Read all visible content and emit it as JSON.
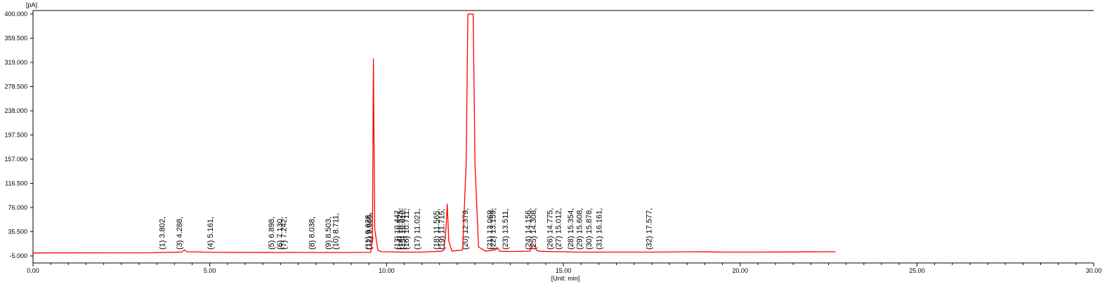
{
  "chart_data": {
    "type": "line",
    "yunit": "[pA]",
    "xlabel": "[Unit: min]",
    "xlim": [
      0,
      30
    ],
    "ylim": [
      -5,
      400
    ],
    "x_ticks": [
      "0.00",
      "5.00",
      "10.00",
      "15.00",
      "20.00",
      "25.00",
      "30.00"
    ],
    "y_ticks": [
      "-5.000",
      "35.500",
      "76.000",
      "116.500",
      "157.000",
      "197.500",
      "238.000",
      "278.500",
      "319.000",
      "359.500",
      "400.000"
    ],
    "grid": false,
    "series": [
      {
        "color": "#ff0000",
        "points": [
          [
            0,
            0
          ],
          [
            3.3,
            0.3
          ],
          [
            3.8,
            1
          ],
          [
            4.2,
            1.5
          ],
          [
            4.288,
            5
          ],
          [
            4.35,
            2
          ],
          [
            5.161,
            1
          ],
          [
            6.898,
            0.8
          ],
          [
            7.13,
            0.8
          ],
          [
            7.242,
            1
          ],
          [
            8.038,
            0.8
          ],
          [
            8.503,
            0.8
          ],
          [
            8.711,
            0.8
          ],
          [
            9.55,
            1
          ],
          [
            9.6,
            20
          ],
          [
            9.628,
            325
          ],
          [
            9.65,
            150
          ],
          [
            9.665,
            40
          ],
          [
            9.75,
            5
          ],
          [
            9.85,
            2
          ],
          [
            10.447,
            1.5
          ],
          [
            11.021,
            1.5
          ],
          [
            11.565,
            3
          ],
          [
            11.62,
            5
          ],
          [
            11.68,
            40
          ],
          [
            11.715,
            82
          ],
          [
            11.76,
            20
          ],
          [
            11.85,
            3
          ],
          [
            12.15,
            5
          ],
          [
            12.25,
            150
          ],
          [
            12.3,
            400
          ],
          [
            12.45,
            400
          ],
          [
            12.5,
            150
          ],
          [
            12.6,
            10
          ],
          [
            12.8,
            3
          ],
          [
            13.069,
            5
          ],
          [
            13.15,
            8
          ],
          [
            13.2,
            3
          ],
          [
            13.511,
            2.5
          ],
          [
            14.05,
            3
          ],
          [
            14.156,
            14
          ],
          [
            14.25,
            4
          ],
          [
            14.308,
            3
          ],
          [
            14.775,
            2
          ],
          [
            15.012,
            2
          ],
          [
            15.354,
            1.5
          ],
          [
            15.608,
            1.5
          ],
          [
            15.878,
            1.5
          ],
          [
            16.161,
            1.5
          ],
          [
            17.577,
            1.5
          ],
          [
            18.8,
            2
          ],
          [
            19.5,
            1.5
          ],
          [
            20.5,
            1.5
          ],
          [
            22.7,
            2
          ]
        ]
      }
    ],
    "peaks": [
      {
        "label": "(1) 3.802,",
        "x": 3.802
      },
      {
        "label": "(3) 4.288,",
        "x": 4.288
      },
      {
        "label": "(4) 5.161,",
        "x": 5.161
      },
      {
        "label": "(5) 6.898,",
        "x": 6.898
      },
      {
        "label": "(6) 7.130,",
        "x": 7.13
      },
      {
        "label": "(7) 7.242,",
        "x": 7.242
      },
      {
        "label": "(8) 8.038,",
        "x": 8.038
      },
      {
        "label": "(9) 8.503,",
        "x": 8.503
      },
      {
        "label": "(10) 8.711,",
        "x": 8.711
      },
      {
        "label": "(11) 9.628,",
        "x": 9.628
      },
      {
        "label": "(12) 9.665,",
        "x": 9.665
      },
      {
        "label": "(13) 10.447,",
        "x": 10.447
      },
      {
        "label": "(14) 10.525,",
        "x": 10.525
      },
      {
        "label": "(15) 10.610,",
        "x": 10.61
      },
      {
        "label": "(16) 10.711,",
        "x": 10.711
      },
      {
        "label": "(17) 11.021,",
        "x": 11.021
      },
      {
        "label": "(18) 11.565,",
        "x": 11.565
      },
      {
        "label": "(19) 11.715,",
        "x": 11.715
      },
      {
        "label": "(20) 12.379,",
        "x": 12.379
      },
      {
        "label": "(21) 13.069,",
        "x": 13.069
      },
      {
        "label": "(22) 13.159,",
        "x": 13.159
      },
      {
        "label": "(23) 13.511,",
        "x": 13.511
      },
      {
        "label": "(24) 14.156,",
        "x": 14.156
      },
      {
        "label": "(25) 14.308,",
        "x": 14.308
      },
      {
        "label": "(26) 14.775,",
        "x": 14.775
      },
      {
        "label": "(27) 15.012,",
        "x": 15.012
      },
      {
        "label": "(28) 15.354,",
        "x": 15.354
      },
      {
        "label": "(29) 15.608,",
        "x": 15.608
      },
      {
        "label": "(30) 15.878,",
        "x": 15.878
      },
      {
        "label": "(31) 16.161,",
        "x": 16.161
      },
      {
        "label": "(32) 17.577,",
        "x": 17.577
      }
    ]
  }
}
